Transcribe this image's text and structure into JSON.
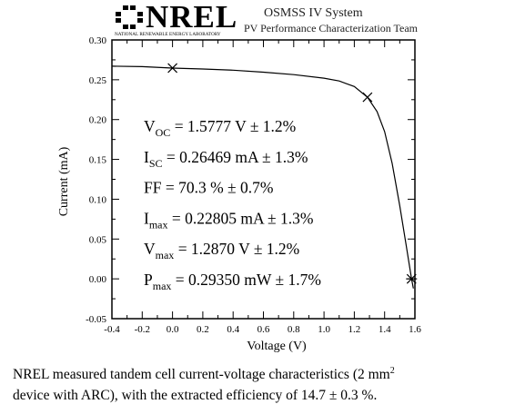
{
  "header": {
    "logo_text": "NREL",
    "logo_subtext": "NATIONAL RENEWABLE ENERGY LABORATORY",
    "system": "OSMSS IV System",
    "team": "PV Performance Characterization Team"
  },
  "chart_data": {
    "type": "line",
    "title": "",
    "xlabel": "Voltage (V)",
    "ylabel": "Current (mA)",
    "xlim": [
      -0.4,
      1.6
    ],
    "ylim": [
      -0.05,
      0.3
    ],
    "grid": false,
    "xticks": [
      "-0.4",
      "-0.2",
      "0.0",
      "0.2",
      "0.4",
      "0.6",
      "0.8",
      "1.0",
      "1.2",
      "1.4",
      "1.6"
    ],
    "yticks": [
      "-0.05",
      "0.00",
      "0.05",
      "0.10",
      "0.15",
      "0.20",
      "0.25",
      "0.30"
    ],
    "series": [
      {
        "x": [
          -0.4,
          -0.2,
          0.0,
          0.2,
          0.4,
          0.6,
          0.8,
          1.0,
          1.1,
          1.2,
          1.287,
          1.35,
          1.4,
          1.45,
          1.5,
          1.54,
          1.5777,
          1.59
        ],
        "y": [
          0.267,
          0.2665,
          0.2647,
          0.2635,
          0.262,
          0.2595,
          0.2565,
          0.252,
          0.2485,
          0.2415,
          0.228,
          0.21,
          0.185,
          0.145,
          0.092,
          0.045,
          0.0,
          -0.012
        ]
      }
    ],
    "markers": [
      {
        "x": 0.0,
        "y": 0.26469,
        "symbol": "x"
      },
      {
        "x": 1.287,
        "y": 0.22805,
        "symbol": "x"
      },
      {
        "x": 1.5777,
        "y": 0.0,
        "symbol": "*"
      }
    ],
    "annotations": [
      {
        "main": "V",
        "sub": "OC",
        "rest": " = 1.5777 V ± 1.2%"
      },
      {
        "main": "I",
        "sub": "SC",
        "rest": " = 0.26469 mA ± 1.3%"
      },
      {
        "main": "FF",
        "sub": "",
        "rest": " = 70.3 % ± 0.7%"
      },
      {
        "main": "I",
        "sub": "max",
        "rest": " = 0.22805 mA ± 1.3%"
      },
      {
        "main": "V",
        "sub": "max",
        "rest": " = 1.2870 V ± 1.2%"
      },
      {
        "main": "P",
        "sub": "max",
        "rest": " = 0.29350 mW ± 1.7%"
      }
    ]
  },
  "caption": {
    "line1_start": "NREL measured tandem cell current-voltage characteristics (2 mm",
    "line1_sup": "2",
    "line2": "device with ARC), with the extracted efficiency of 14.7 ± 0.3 %."
  }
}
